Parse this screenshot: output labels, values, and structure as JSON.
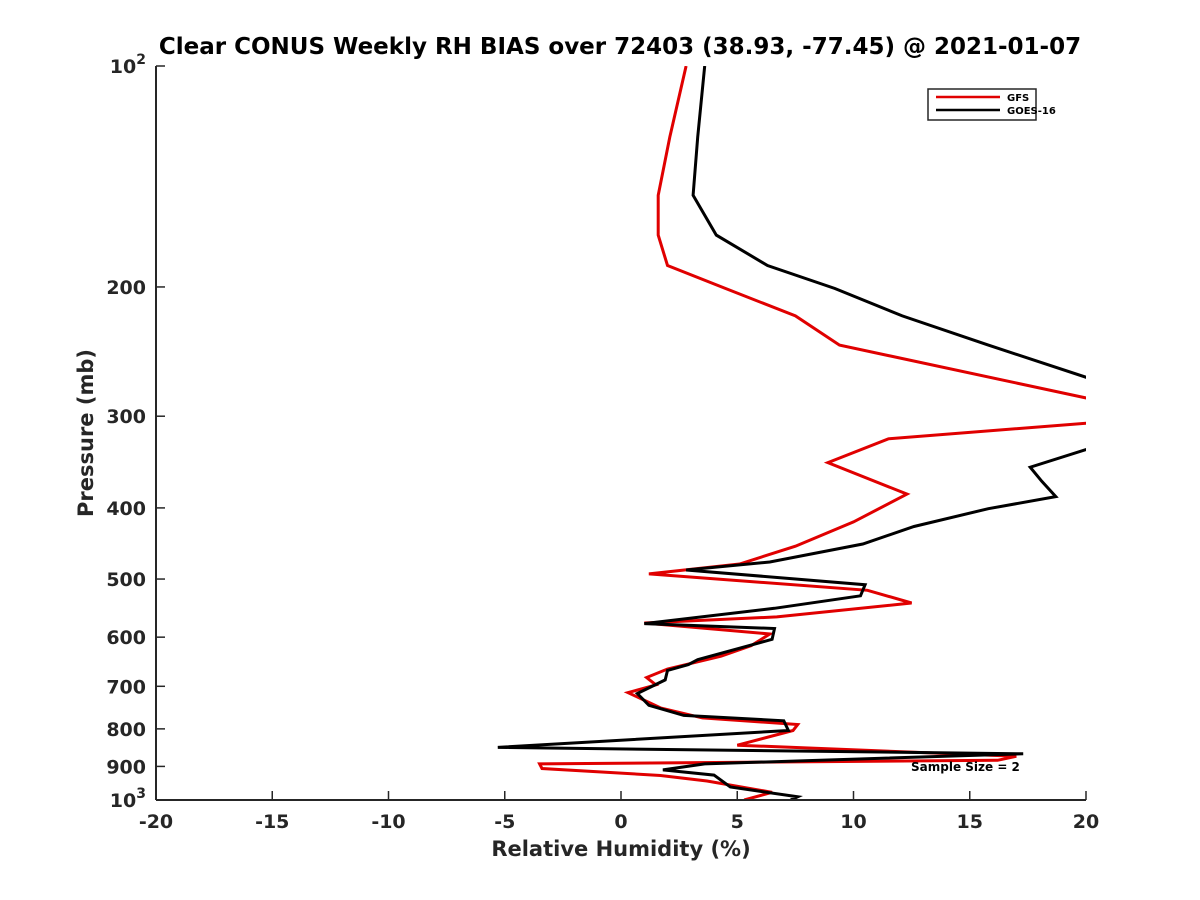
{
  "chart_data": {
    "type": "line",
    "title": "Clear CONUS Weekly RH BIAS over 72403 (38.93, -77.45) @ 2021-01-07",
    "xlabel": "Relative Humidity (%)",
    "ylabel": "Pressure (mb)",
    "xlim": [
      -20,
      20
    ],
    "ylim": [
      100,
      1000
    ],
    "y_scale": "log",
    "y_reversed": true,
    "grid": false,
    "legend_position": "top-right",
    "x_ticks": [
      "-20",
      "-15",
      "-10",
      "-5",
      "0",
      "5",
      "10",
      "15",
      "20"
    ],
    "y_ticks": [
      {
        "value": 100,
        "base": "10",
        "exp": "2"
      },
      {
        "value": 200,
        "base": "200",
        "exp": ""
      },
      {
        "value": 300,
        "base": "300",
        "exp": ""
      },
      {
        "value": 400,
        "base": "400",
        "exp": ""
      },
      {
        "value": 500,
        "base": "500",
        "exp": ""
      },
      {
        "value": 600,
        "base": "600",
        "exp": ""
      },
      {
        "value": 700,
        "base": "700",
        "exp": ""
      },
      {
        "value": 800,
        "base": "800",
        "exp": ""
      },
      {
        "value": 900,
        "base": "900",
        "exp": ""
      },
      {
        "value": 1000,
        "base": "10",
        "exp": "3"
      }
    ],
    "annotation": "Sample Size = 2",
    "series": [
      {
        "name": "GFS",
        "color": "#e00000",
        "points": [
          [
            2.8,
            100
          ],
          [
            2.1,
            125
          ],
          [
            1.6,
            150
          ],
          [
            1.6,
            170
          ],
          [
            2.0,
            187
          ],
          [
            4.5,
            201
          ],
          [
            7.5,
            219
          ],
          [
            9.4,
            240
          ],
          [
            20.4,
            285
          ],
          [
            20.4,
            306
          ],
          [
            11.5,
            322
          ],
          [
            8.9,
            347
          ],
          [
            12.3,
            383
          ],
          [
            10.0,
            418
          ],
          [
            7.5,
            451
          ],
          [
            5.1,
            477
          ],
          [
            1.2,
            492
          ],
          [
            10.6,
            518
          ],
          [
            12.5,
            539
          ],
          [
            6.7,
            563
          ],
          [
            1.0,
            574
          ],
          [
            6.4,
            594
          ],
          [
            5.6,
            616
          ],
          [
            4.3,
            637
          ],
          [
            2.0,
            663
          ],
          [
            1.1,
            681
          ],
          [
            1.5,
            697
          ],
          [
            0.3,
            714
          ],
          [
            1.7,
            749
          ],
          [
            3.5,
            773
          ],
          [
            7.6,
            789
          ],
          [
            7.4,
            804
          ],
          [
            5.0,
            842
          ],
          [
            17.0,
            872
          ],
          [
            16.2,
            883
          ],
          [
            -3.5,
            893
          ],
          [
            -3.4,
            906
          ],
          [
            1.7,
            926
          ],
          [
            3.7,
            942
          ],
          [
            6.5,
            976
          ],
          [
            5.3,
            1000
          ]
        ]
      },
      {
        "name": "GOES-16",
        "color": "#000000",
        "points": [
          [
            3.6,
            100
          ],
          [
            3.3,
            125
          ],
          [
            3.1,
            150
          ],
          [
            4.1,
            170
          ],
          [
            6.3,
            187
          ],
          [
            9.2,
            201
          ],
          [
            12.1,
            219
          ],
          [
            15.8,
            240
          ],
          [
            20.4,
            268
          ],
          [
            20.4,
            330
          ],
          [
            17.6,
            352
          ],
          [
            18.1,
            368
          ],
          [
            18.7,
            386
          ],
          [
            15.8,
            401
          ],
          [
            12.6,
            424
          ],
          [
            10.4,
            448
          ],
          [
            6.4,
            474
          ],
          [
            2.8,
            486
          ],
          [
            10.5,
            509
          ],
          [
            10.3,
            527
          ],
          [
            6.6,
            548
          ],
          [
            1.0,
            575
          ],
          [
            6.6,
            584
          ],
          [
            6.5,
            604
          ],
          [
            3.3,
            644
          ],
          [
            2.9,
            654
          ],
          [
            2.0,
            666
          ],
          [
            1.9,
            686
          ],
          [
            0.7,
            716
          ],
          [
            1.2,
            743
          ],
          [
            2.7,
            767
          ],
          [
            7.0,
            780
          ],
          [
            7.2,
            804
          ],
          [
            -5.3,
            848
          ],
          [
            17.3,
            865
          ],
          [
            3.6,
            893
          ],
          [
            1.8,
            910
          ],
          [
            4.0,
            925
          ],
          [
            4.7,
            960
          ],
          [
            7.6,
            990
          ],
          [
            7.3,
            1000
          ]
        ]
      }
    ]
  }
}
